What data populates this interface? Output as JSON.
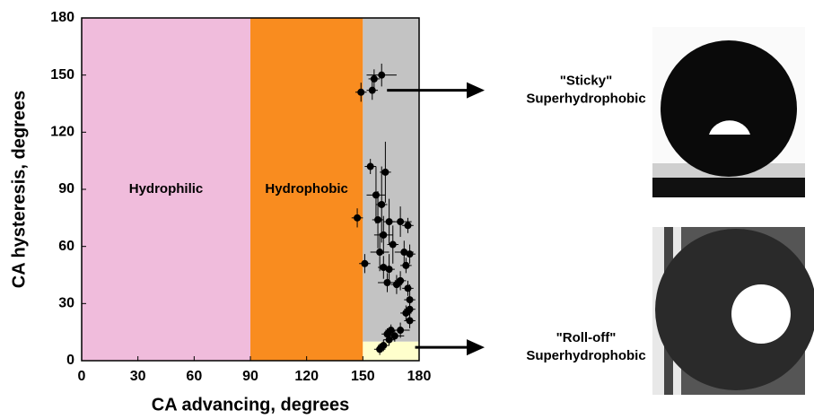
{
  "chart_data": {
    "type": "scatter",
    "xlabel": "CA advancing, degrees",
    "ylabel": "CA hysteresis, degrees",
    "xlim": [
      0,
      180
    ],
    "ylim": [
      0,
      180
    ],
    "xticks": [
      0,
      30,
      60,
      90,
      120,
      150,
      180
    ],
    "yticks": [
      0,
      30,
      60,
      90,
      120,
      150,
      180
    ],
    "regions": [
      {
        "label": "Hydrophilic",
        "x": [
          0,
          90
        ],
        "y": [
          0,
          180
        ],
        "color": "#f0bcdc"
      },
      {
        "label": "Hydrophobic",
        "x": [
          90,
          150
        ],
        "y": [
          0,
          180
        ],
        "color": "#f98c1f"
      },
      {
        "x": [
          150,
          180
        ],
        "y": [
          10,
          180
        ],
        "color": "#c3c3c3"
      },
      {
        "x": [
          150,
          180
        ],
        "y": [
          0,
          10
        ],
        "color": "#ffffcc"
      }
    ],
    "series": [
      {
        "color": "#000000",
        "x": [
          149,
          155,
          156,
          160,
          154,
          162,
          147,
          151,
          157,
          160,
          158,
          161,
          164,
          170,
          174,
          159,
          166,
          172,
          175,
          161,
          164,
          173,
          163,
          168,
          174,
          170,
          175,
          173,
          175,
          170,
          167,
          164,
          161,
          163,
          165,
          175,
          159
        ],
        "values": [
          141,
          142,
          148,
          150,
          102,
          99,
          75,
          51,
          87,
          82,
          74,
          66,
          73,
          73,
          71,
          57,
          61,
          57,
          56,
          49,
          48,
          50,
          41,
          40,
          38,
          42,
          32,
          25,
          21,
          16,
          13,
          11,
          8,
          14,
          16,
          27,
          6
        ],
        "x_err": [
          3,
          3,
          3,
          8,
          3,
          3,
          3,
          3,
          5,
          3,
          3,
          5,
          3,
          6,
          3,
          5,
          3,
          5,
          3,
          3,
          3,
          3,
          5,
          3,
          3,
          3,
          3,
          3,
          3,
          5,
          5,
          3,
          3,
          3,
          3,
          3,
          3
        ],
        "y_err": [
          5,
          5,
          5,
          6,
          4,
          16,
          5,
          5,
          15,
          20,
          15,
          10,
          12,
          8,
          4,
          10,
          10,
          6,
          5,
          6,
          8,
          4,
          5,
          5,
          4,
          5,
          8,
          4,
          4,
          4,
          3,
          3,
          3,
          3,
          3,
          4,
          3
        ]
      }
    ],
    "annotations": [
      {
        "lines": [
          "\"Sticky\"",
          "Superhydrophobic"
        ],
        "x": 160,
        "y": 142
      },
      {
        "lines": [
          "\"Roll-off\"",
          "Superhydrophobic"
        ],
        "x": 175,
        "y": 7
      }
    ]
  }
}
